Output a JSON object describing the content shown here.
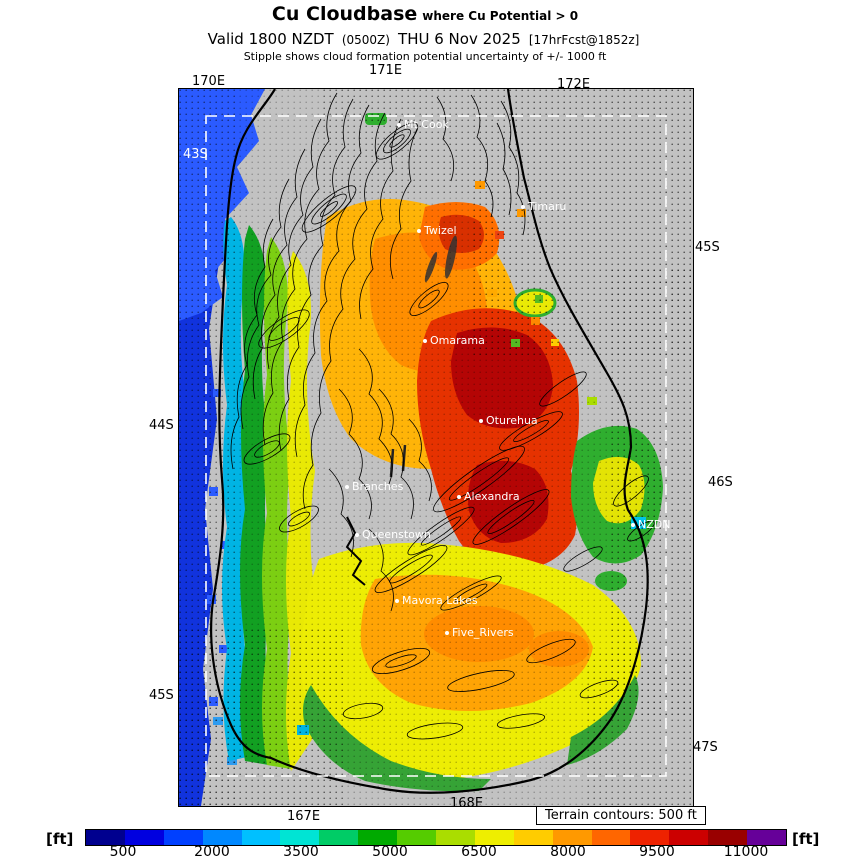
{
  "header": {
    "title": "Cu Cloudbase",
    "title_qualifier": "where Cu Potential > 0",
    "valid": {
      "prefix": "Valid 1800 NZDT",
      "zulu": "(0500Z)",
      "date": "THU 6 Nov 2025",
      "fcst": "[17hrFcst@1852z]"
    },
    "subtitle": "Stipple shows cloud formation potential uncertainty of +/- 1000 ft"
  },
  "map": {
    "axis": {
      "top": [
        "170E",
        "171E",
        "172E"
      ],
      "bottom": [
        "167E",
        "168E"
      ],
      "left": [
        "44S",
        "45S"
      ],
      "right": [
        "45S",
        "46S",
        "47S"
      ],
      "inner_left": "43S"
    },
    "towns": [
      "Mt Cook",
      "Timaru",
      "Twizel",
      "Omarama",
      "Oturehua",
      "Branches",
      "Alexandra",
      "Queenstown",
      "Mavora Lakes",
      "Five_Rivers",
      "NZDN"
    ],
    "terrain_note": "Terrain contours: 500 ft"
  },
  "colorbar": {
    "unit_label": "[ft]",
    "ticks": [
      "500",
      "2000",
      "3500",
      "5000",
      "6500",
      "8000",
      "9500",
      "11000"
    ],
    "colors": [
      "#00008f",
      "#0000e0",
      "#0040ff",
      "#0088ff",
      "#00c0ff",
      "#00e4d4",
      "#00cc66",
      "#00aa00",
      "#55cc00",
      "#aadd00",
      "#eeee00",
      "#ffcc00",
      "#ff9900",
      "#ff6600",
      "#ee2200",
      "#cc0000",
      "#990000",
      "#660099"
    ]
  }
}
